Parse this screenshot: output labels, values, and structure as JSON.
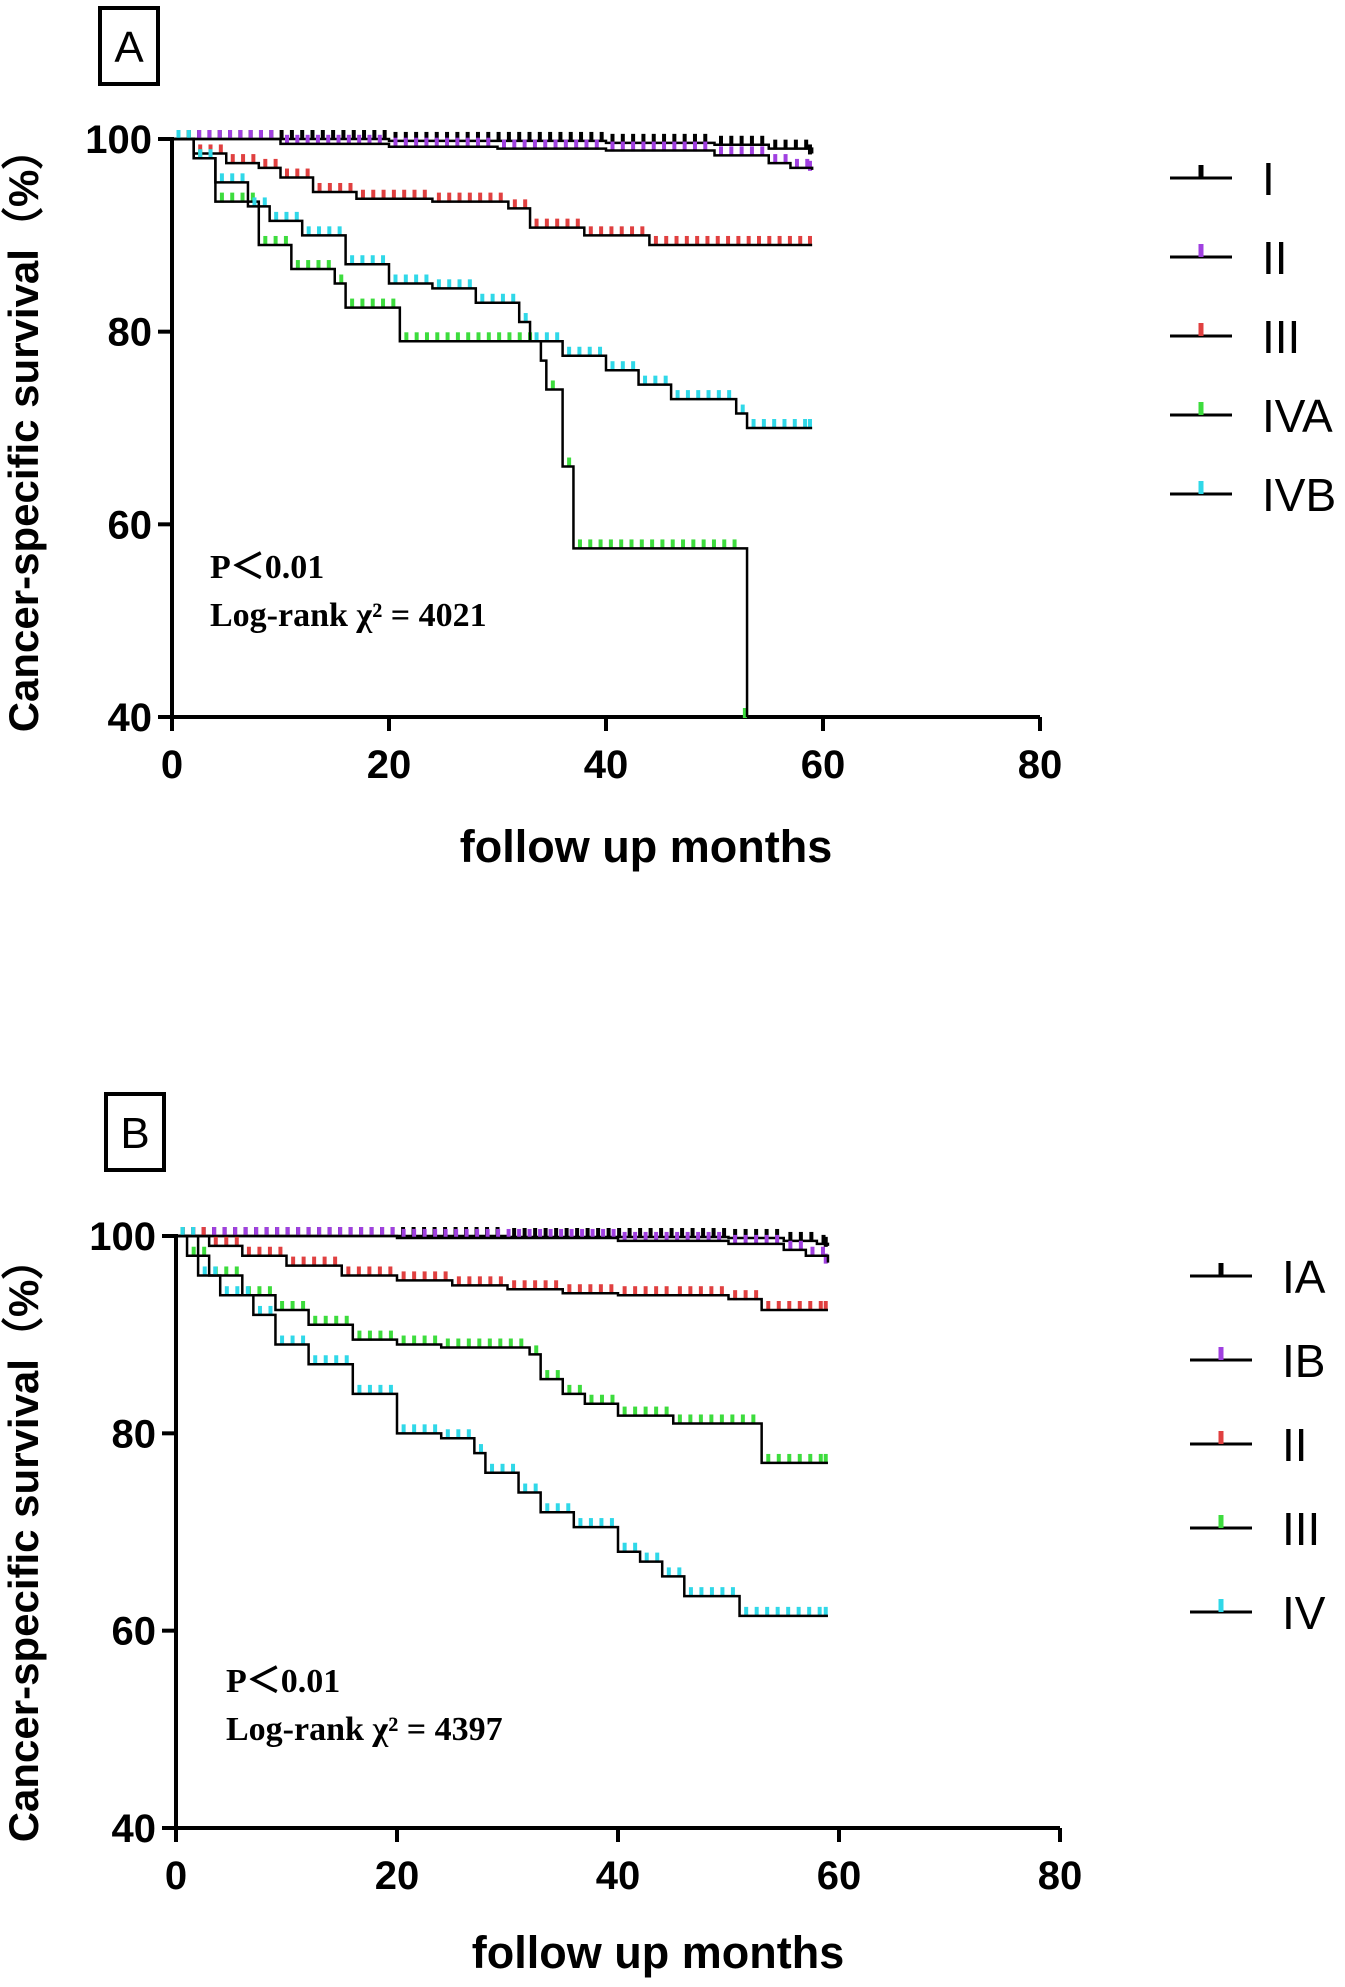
{
  "chart_data": [
    {
      "type": "line",
      "panel_label": "A",
      "title": "",
      "xlabel": "follow up months",
      "ylabel": "Cancer-specific survival（%）",
      "xlim": [
        0,
        80
      ],
      "ylim": [
        40,
        100
      ],
      "xticks": [
        0,
        20,
        40,
        60,
        80
      ],
      "yticks": [
        40,
        60,
        80,
        100
      ],
      "annotations": [
        "P＜0.01",
        "Log-rank χ² = 4021"
      ],
      "legend_position": "right",
      "series": [
        {
          "name": "I",
          "color": "#000000",
          "steps": [
            [
              0,
              100
            ],
            [
              20,
              99.8
            ],
            [
              40,
              99.6
            ],
            [
              50,
              99.4
            ],
            [
              55,
              99.0
            ],
            [
              59,
              98.5
            ]
          ]
        },
        {
          "name": "II",
          "color": "#a040e0",
          "steps": [
            [
              0,
              100
            ],
            [
              10,
              99.5
            ],
            [
              20,
              99.2
            ],
            [
              30,
              99.0
            ],
            [
              40,
              98.8
            ],
            [
              50,
              98.3
            ],
            [
              55,
              97.5
            ],
            [
              57,
              97.0
            ],
            [
              59,
              96.8
            ]
          ]
        },
        {
          "name": "III",
          "color": "#e04040",
          "steps": [
            [
              0,
              100
            ],
            [
              2,
              98.5
            ],
            [
              5,
              97.5
            ],
            [
              8,
              97
            ],
            [
              10,
              96
            ],
            [
              13,
              94.5
            ],
            [
              17,
              93.8
            ],
            [
              24,
              93.5
            ],
            [
              31,
              92.8
            ],
            [
              33,
              90.8
            ],
            [
              38,
              90
            ],
            [
              44,
              89
            ],
            [
              59,
              89
            ]
          ]
        },
        {
          "name": "IVA",
          "color": "#3ddc3d",
          "steps": [
            [
              0,
              100
            ],
            [
              2,
              98
            ],
            [
              4,
              93.5
            ],
            [
              8,
              89
            ],
            [
              11,
              86.5
            ],
            [
              15,
              85
            ],
            [
              16,
              82.5
            ],
            [
              21,
              79
            ],
            [
              34,
              77
            ],
            [
              34.5,
              74
            ],
            [
              36,
              66
            ],
            [
              37,
              57.5
            ],
            [
              53,
              57.5
            ],
            [
              53,
              40
            ]
          ]
        },
        {
          "name": "IVB",
          "color": "#30d8e8",
          "steps": [
            [
              0,
              100
            ],
            [
              2,
              98
            ],
            [
              4,
              95.5
            ],
            [
              7,
              93
            ],
            [
              9,
              91.5
            ],
            [
              12,
              90
            ],
            [
              16,
              87
            ],
            [
              20,
              85
            ],
            [
              24,
              84.5
            ],
            [
              28,
              83
            ],
            [
              32,
              81
            ],
            [
              33,
              79
            ],
            [
              36,
              77.5
            ],
            [
              40,
              76
            ],
            [
              43,
              74.5
            ],
            [
              46,
              73
            ],
            [
              52,
              71.5
            ],
            [
              53,
              70
            ],
            [
              59,
              70
            ]
          ]
        }
      ]
    },
    {
      "type": "line",
      "panel_label": "B",
      "title": "",
      "xlabel": "follow up months",
      "ylabel": "Cancer-specific survival（%）",
      "xlim": [
        0,
        80
      ],
      "ylim": [
        40,
        100
      ],
      "xticks": [
        0,
        20,
        40,
        60,
        80
      ],
      "yticks": [
        40,
        60,
        80,
        100
      ],
      "annotations": [
        "P＜0.01",
        "Log-rank χ² = 4397"
      ],
      "legend_position": "right",
      "series": [
        {
          "name": "IA",
          "color": "#000000",
          "steps": [
            [
              0,
              100
            ],
            [
              30,
              99.9
            ],
            [
              50,
              99.8
            ],
            [
              55,
              99.5
            ],
            [
              58,
              99.2
            ],
            [
              59,
              99.0
            ]
          ]
        },
        {
          "name": "IB",
          "color": "#a040e0",
          "steps": [
            [
              0,
              100
            ],
            [
              20,
              99.8
            ],
            [
              40,
              99.5
            ],
            [
              50,
              99.2
            ],
            [
              55,
              98.6
            ],
            [
              57,
              98.0
            ],
            [
              59,
              97.3
            ]
          ]
        },
        {
          "name": "II",
          "color": "#e04040",
          "steps": [
            [
              0,
              100
            ],
            [
              3,
              99
            ],
            [
              6,
              98
            ],
            [
              10,
              97
            ],
            [
              15,
              96
            ],
            [
              20,
              95.5
            ],
            [
              25,
              95
            ],
            [
              30,
              94.6
            ],
            [
              35,
              94.2
            ],
            [
              40,
              94
            ],
            [
              45,
              94
            ],
            [
              50,
              93.6
            ],
            [
              53,
              92.5
            ],
            [
              59,
              92.5
            ]
          ]
        },
        {
          "name": "III",
          "color": "#3ddc3d",
          "steps": [
            [
              0,
              100
            ],
            [
              1,
              98
            ],
            [
              3,
              96
            ],
            [
              6,
              94
            ],
            [
              9,
              92.5
            ],
            [
              12,
              91
            ],
            [
              16,
              89.5
            ],
            [
              20,
              89
            ],
            [
              24,
              88.7
            ],
            [
              32,
              88
            ],
            [
              33,
              85.5
            ],
            [
              35,
              84
            ],
            [
              37,
              83
            ],
            [
              40,
              81.8
            ],
            [
              45,
              81
            ],
            [
              53,
              77
            ],
            [
              59,
              77
            ]
          ]
        },
        {
          "name": "IV",
          "color": "#30d8e8",
          "steps": [
            [
              0,
              100
            ],
            [
              2,
              96
            ],
            [
              4,
              94
            ],
            [
              7,
              92
            ],
            [
              9,
              89
            ],
            [
              12,
              87
            ],
            [
              16,
              84
            ],
            [
              20,
              80
            ],
            [
              24,
              79.5
            ],
            [
              27,
              78
            ],
            [
              28,
              76
            ],
            [
              31,
              74
            ],
            [
              33,
              72
            ],
            [
              36,
              70.5
            ],
            [
              40,
              68
            ],
            [
              42,
              67
            ],
            [
              44,
              65.5
            ],
            [
              46,
              63.5
            ],
            [
              51,
              61.5
            ],
            [
              59,
              61.5
            ]
          ]
        }
      ]
    }
  ]
}
